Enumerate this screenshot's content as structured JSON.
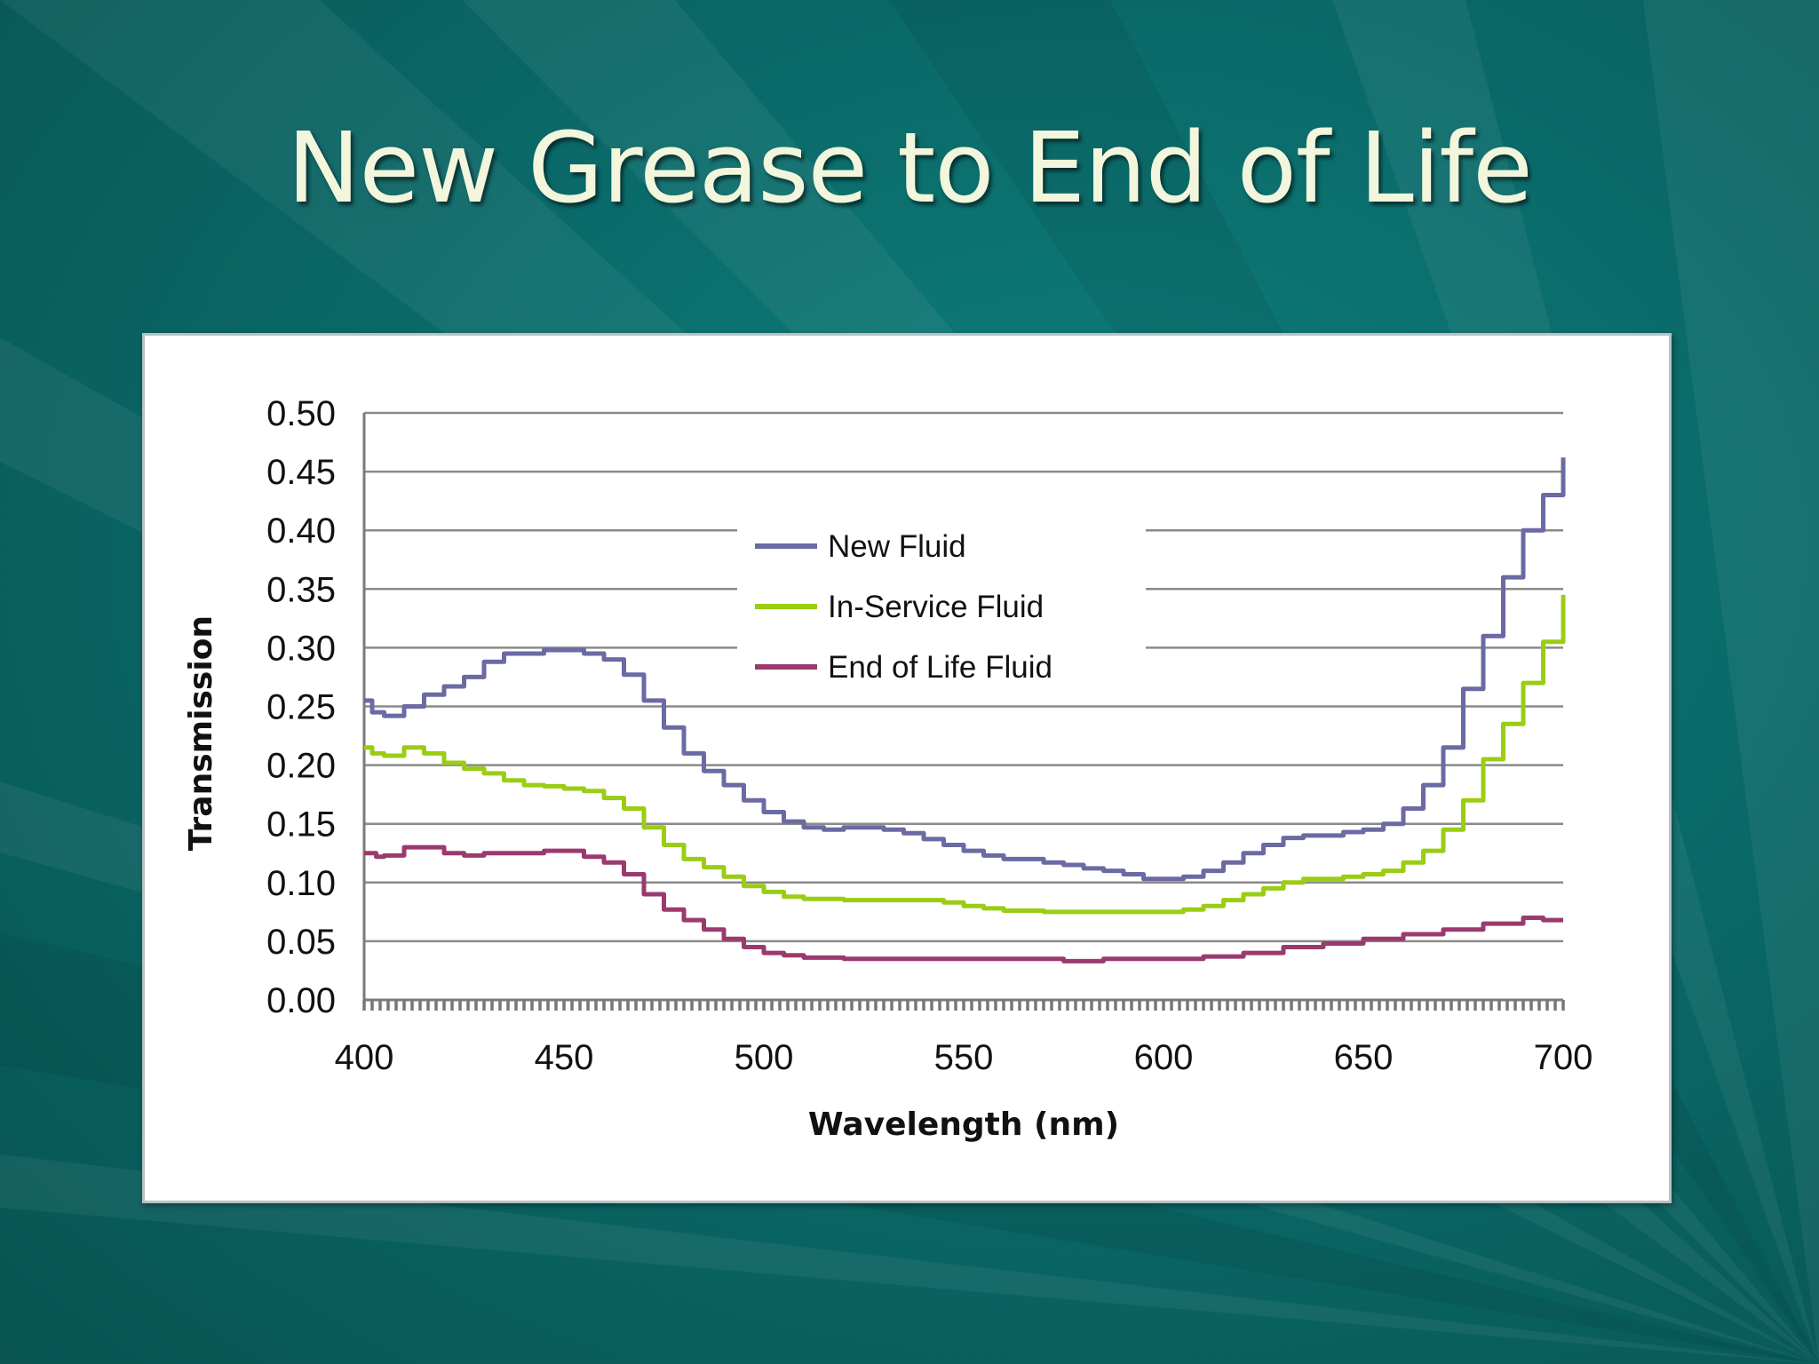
{
  "slide": {
    "title": "New Grease to End of Life"
  },
  "colors": {
    "background": "#0a6a69",
    "title": "#f1f6dc"
  },
  "chart_data": {
    "type": "line",
    "title": "",
    "xlabel": "Wavelength (nm)",
    "ylabel": "Transmission",
    "xlim": [
      400,
      700
    ],
    "ylim": [
      0,
      0.5
    ],
    "x_ticks": [
      "400",
      "450",
      "500",
      "550",
      "600",
      "650",
      "700"
    ],
    "y_ticks": [
      "0.00",
      "0.05",
      "0.10",
      "0.15",
      "0.20",
      "0.25",
      "0.30",
      "0.35",
      "0.40",
      "0.45",
      "0.50"
    ],
    "grid": true,
    "legend": "center-right",
    "series": [
      {
        "name": "New  Fluid",
        "color": "#6b6aa3",
        "x": [
          400,
          402,
          405,
          410,
          415,
          420,
          425,
          430,
          435,
          440,
          445,
          450,
          455,
          460,
          465,
          470,
          475,
          480,
          485,
          490,
          495,
          500,
          505,
          510,
          515,
          520,
          525,
          530,
          535,
          540,
          545,
          550,
          555,
          560,
          565,
          570,
          575,
          580,
          585,
          590,
          595,
          600,
          605,
          610,
          615,
          620,
          625,
          630,
          635,
          640,
          645,
          650,
          655,
          660,
          665,
          670,
          675,
          680,
          685,
          690,
          695,
          700
        ],
        "y": [
          0.255,
          0.245,
          0.242,
          0.25,
          0.26,
          0.267,
          0.275,
          0.288,
          0.295,
          0.295,
          0.298,
          0.298,
          0.295,
          0.29,
          0.277,
          0.255,
          0.232,
          0.21,
          0.195,
          0.183,
          0.17,
          0.16,
          0.152,
          0.147,
          0.145,
          0.147,
          0.147,
          0.145,
          0.142,
          0.137,
          0.132,
          0.127,
          0.123,
          0.12,
          0.12,
          0.117,
          0.115,
          0.112,
          0.11,
          0.107,
          0.103,
          0.103,
          0.105,
          0.11,
          0.117,
          0.125,
          0.132,
          0.138,
          0.14,
          0.14,
          0.143,
          0.145,
          0.15,
          0.163,
          0.183,
          0.215,
          0.265,
          0.31,
          0.36,
          0.4,
          0.43,
          0.462
        ]
      },
      {
        "name": "In-Service Fluid",
        "color": "#9acd14",
        "x": [
          400,
          402,
          405,
          410,
          415,
          420,
          425,
          430,
          435,
          440,
          445,
          450,
          455,
          460,
          465,
          470,
          475,
          480,
          485,
          490,
          495,
          500,
          505,
          510,
          520,
          530,
          540,
          545,
          550,
          555,
          560,
          570,
          580,
          590,
          600,
          605,
          610,
          615,
          620,
          625,
          630,
          635,
          640,
          645,
          650,
          655,
          660,
          665,
          670,
          675,
          680,
          685,
          690,
          695,
          700
        ],
        "y": [
          0.215,
          0.21,
          0.208,
          0.215,
          0.21,
          0.202,
          0.197,
          0.193,
          0.187,
          0.183,
          0.182,
          0.18,
          0.178,
          0.172,
          0.163,
          0.147,
          0.132,
          0.12,
          0.113,
          0.105,
          0.097,
          0.092,
          0.088,
          0.086,
          0.085,
          0.085,
          0.085,
          0.083,
          0.08,
          0.078,
          0.076,
          0.075,
          0.075,
          0.075,
          0.075,
          0.077,
          0.08,
          0.085,
          0.09,
          0.095,
          0.1,
          0.103,
          0.103,
          0.105,
          0.107,
          0.11,
          0.117,
          0.127,
          0.145,
          0.17,
          0.205,
          0.235,
          0.27,
          0.305,
          0.345
        ]
      },
      {
        "name": "End of Life Fluid",
        "color": "#9b3a6e",
        "x": [
          400,
          403,
          405,
          410,
          415,
          420,
          425,
          430,
          435,
          440,
          445,
          450,
          455,
          460,
          465,
          470,
          475,
          480,
          485,
          490,
          495,
          500,
          505,
          510,
          520,
          540,
          560,
          570,
          575,
          580,
          585,
          590,
          600,
          610,
          620,
          630,
          640,
          650,
          660,
          670,
          680,
          690,
          695,
          700
        ],
        "y": [
          0.125,
          0.122,
          0.123,
          0.13,
          0.13,
          0.125,
          0.123,
          0.125,
          0.125,
          0.125,
          0.127,
          0.127,
          0.122,
          0.117,
          0.107,
          0.09,
          0.077,
          0.068,
          0.06,
          0.052,
          0.045,
          0.04,
          0.038,
          0.036,
          0.035,
          0.035,
          0.035,
          0.035,
          0.033,
          0.033,
          0.035,
          0.035,
          0.035,
          0.037,
          0.04,
          0.045,
          0.048,
          0.052,
          0.056,
          0.06,
          0.065,
          0.07,
          0.068,
          0.068
        ]
      }
    ]
  }
}
